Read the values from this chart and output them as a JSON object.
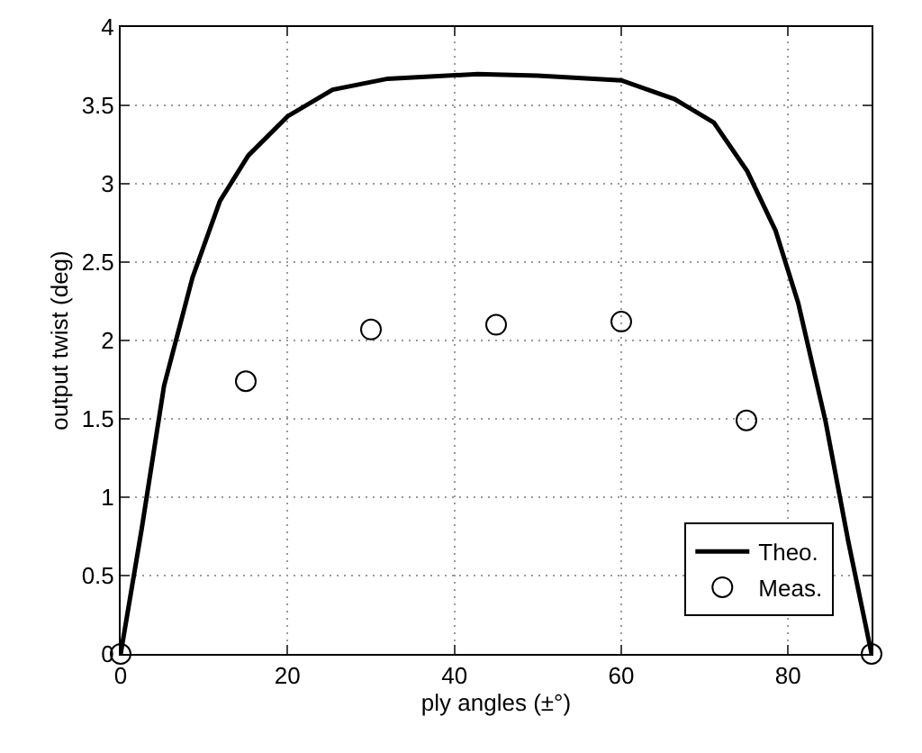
{
  "chart_data": {
    "type": "line",
    "xlabel": "ply angles (±°)",
    "ylabel": "output twist (deg)",
    "xlim": [
      0,
      90
    ],
    "xticks": [
      0,
      20,
      40,
      60,
      80
    ],
    "ylim": [
      0,
      4
    ],
    "yticks": [
      0,
      0.5,
      1,
      1.5,
      2,
      2.5,
      3,
      3.5,
      4
    ],
    "grid": true,
    "legend": "bottom right",
    "series": [
      {
        "name": "Theo.",
        "color": "#000000",
        "line_style": "solid",
        "marker": "none",
        "x": [
          0,
          2.5,
          5.2,
          8.6,
          11.9,
          15.3,
          20,
          25.4,
          32,
          42.8,
          50,
          60,
          66.4,
          71.1,
          75.1,
          78.5,
          81.2,
          84.5,
          87.2,
          90
        ],
        "values": [
          0,
          0.79,
          1.71,
          2.4,
          2.89,
          3.18,
          3.43,
          3.6,
          3.67,
          3.7,
          3.69,
          3.66,
          3.54,
          3.39,
          3.08,
          2.7,
          2.24,
          1.48,
          0.72,
          0
        ]
      },
      {
        "name": "Meas.",
        "type": "scatter",
        "color": "#000000",
        "marker": "circle",
        "x": [
          0,
          15,
          30,
          45,
          60,
          75,
          90
        ],
        "values": [
          0,
          1.74,
          2.07,
          2.1,
          2.12,
          1.49,
          0
        ]
      }
    ]
  }
}
